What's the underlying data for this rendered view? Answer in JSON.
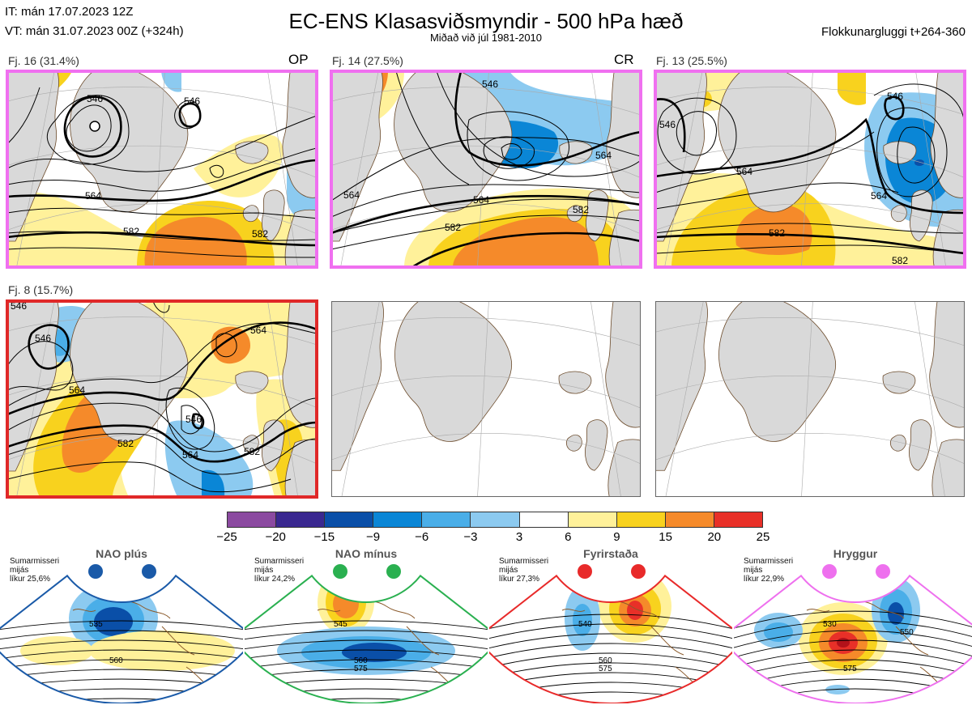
{
  "header": {
    "it_line": "IT: mán 17.07.2023 12Z",
    "vt_line": "VT: mán 31.07.2023 00Z  (+324h)",
    "title": "EC-ENS Klasasviðsmyndir - 500 hPa hæð",
    "subtitle": "Miðað við júl 1981-2010",
    "window": "Flokkunargluggi t+264-360"
  },
  "panels": [
    {
      "label": "Fj. 16 (31.4%)",
      "tag": "OP",
      "frame_color": "#f070f0",
      "contours": [
        "546",
        "546",
        "564",
        "582",
        "582"
      ]
    },
    {
      "label": "Fj. 14 (27.5%)",
      "tag": "CR",
      "frame_color": "#f070f0",
      "contours": [
        "546",
        "564",
        "564",
        "564",
        "582",
        "582"
      ]
    },
    {
      "label": "Fj. 13 (25.5%)",
      "tag": "",
      "frame_color": "#f070f0",
      "contours": [
        "546",
        "546",
        "564",
        "564",
        "582",
        "582"
      ]
    },
    {
      "label": "Fj. 8 (15.7%)",
      "tag": "",
      "frame_color": "#e02828",
      "contours": [
        "546",
        "546",
        "564",
        "564",
        "582",
        "582",
        "564",
        "546"
      ]
    }
  ],
  "colorbar": {
    "ticks": [
      "−25",
      "−20",
      "−15",
      "−9",
      "−6",
      "−3",
      "3",
      "6",
      "9",
      "15",
      "20",
      "25"
    ],
    "colors": [
      "#8b4aa0",
      "#3a2890",
      "#0a4fa8",
      "#0a86d6",
      "#4aaee8",
      "#8ccaf0",
      "#ffffff",
      "#fff19a",
      "#f8d21e",
      "#f58a2a",
      "#e83028",
      "#b3121a"
    ]
  },
  "regimes": [
    {
      "name": "NAO plús",
      "season": "Sumarmisseri",
      "lines": "mijás",
      "prob": "líkur 25,6%",
      "color": "#1a5aa8",
      "contours": [
        "535",
        "560"
      ]
    },
    {
      "name": "NAO mínus",
      "season": "Sumarmisseri",
      "lines": "mijás",
      "prob": "líkur 24,2%",
      "color": "#2ab050",
      "contours": [
        "545",
        "560",
        "575"
      ]
    },
    {
      "name": "Fyrirstaða",
      "season": "Sumarmisseri",
      "lines": "mijás",
      "prob": "líkur 27,3%",
      "color": "#e82a2a",
      "contours": [
        "540",
        "560",
        "575"
      ]
    },
    {
      "name": "Hryggur",
      "season": "Sumarmisseri",
      "lines": "mijás",
      "prob": "líkur 22,9%",
      "color": "#ee70ee",
      "contours": [
        "530",
        "550",
        "575"
      ]
    }
  ],
  "chart_data": {
    "type": "heatmap",
    "title": "EC-ENS Klasasviðsmyndir - 500 hPa hæð",
    "subtitle": "Miðað við júl 1981-2010",
    "clusters": [
      {
        "name": "Fj. 16",
        "percent": 31.4,
        "tag": "OP"
      },
      {
        "name": "Fj. 14",
        "percent": 27.5,
        "tag": "CR"
      },
      {
        "name": "Fj. 13",
        "percent": 25.5,
        "tag": ""
      },
      {
        "name": "Fj. 8",
        "percent": 15.7,
        "tag": ""
      }
    ],
    "colorbar_levels": [
      -25,
      -20,
      -15,
      -9,
      -6,
      -3,
      3,
      6,
      9,
      15,
      20,
      25
    ],
    "regimes": [
      {
        "name": "NAO plús",
        "probability": 25.6
      },
      {
        "name": "NAO mínus",
        "probability": 24.2
      },
      {
        "name": "Fyrirstaða",
        "probability": 27.3
      },
      {
        "name": "Hryggur",
        "probability": 22.9
      }
    ]
  }
}
